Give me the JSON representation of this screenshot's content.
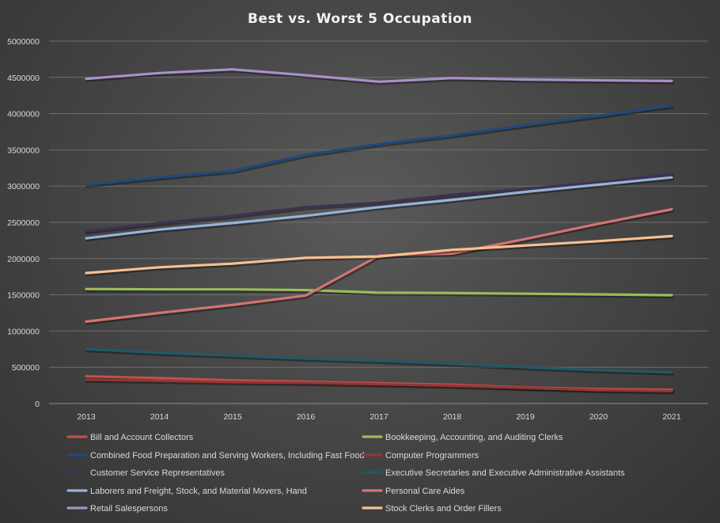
{
  "chart_data": {
    "type": "line",
    "title": "Best vs. Worst  5 Occupation",
    "xlabel": "",
    "ylabel": "",
    "ylim": [
      0,
      5000000
    ],
    "yticks": [
      0,
      500000,
      1000000,
      1500000,
      2000000,
      2500000,
      3000000,
      3500000,
      4000000,
      4500000,
      5000000
    ],
    "ytick_labels": [
      "0",
      "500000",
      "1000000",
      "1500000",
      "2000000",
      "2500000",
      "3000000",
      "3500000",
      "4000000",
      "4500000",
      "5000000"
    ],
    "x": [
      "2013",
      "2014",
      "2015",
      "2016",
      "2017",
      "2018",
      "2019",
      "2020",
      "2021"
    ],
    "grid": "horizontal",
    "legend_position": "bottom",
    "series": [
      {
        "name": "Bill and Account Collectors",
        "color": "#c0504d",
        "values": [
          375000,
          350000,
          320000,
          300000,
          280000,
          260000,
          220000,
          200000,
          190000
        ]
      },
      {
        "name": "Bookkeeping, Accounting, and Auditing Clerks",
        "color": "#9bbb59",
        "values": [
          1580000,
          1575000,
          1575000,
          1565000,
          1530000,
          1525000,
          1515000,
          1505000,
          1495000
        ]
      },
      {
        "name": "Combined Food Preparation and Serving Workers, Including Fast Food",
        "color": "#1f497d",
        "values": [
          3020000,
          3120000,
          3210000,
          3430000,
          3580000,
          3700000,
          3840000,
          3970000,
          4110000
        ]
      },
      {
        "name": "Computer Programmers",
        "color": "#943634",
        "values": [
          330000,
          315000,
          295000,
          285000,
          265000,
          245000,
          215000,
          185000,
          170000
        ]
      },
      {
        "name": "Customer Service Representatives",
        "color": "#3f3151",
        "values": [
          2380000,
          2490000,
          2590000,
          2710000,
          2770000,
          2880000,
          2960000,
          3050000,
          3160000
        ]
      },
      {
        "name": "Executive Secretaries and Executive Administrative Assistants",
        "color": "#215968",
        "values": [
          750000,
          700000,
          660000,
          620000,
          590000,
          550000,
          500000,
          460000,
          430000
        ]
      },
      {
        "name": "Laborers and Freight, Stock, and Material Movers, Hand",
        "color": "#95b3d7",
        "values": [
          2280000,
          2400000,
          2490000,
          2590000,
          2710000,
          2810000,
          2920000,
          3020000,
          3120000
        ]
      },
      {
        "name": "Personal Care Aides",
        "color": "#d47471",
        "values": [
          1130000,
          1250000,
          1360000,
          1490000,
          2040000,
          2070000,
          2270000,
          2480000,
          2680000
        ]
      },
      {
        "name": "Retail Salespersons",
        "color": "#a991c9",
        "values": [
          4480000,
          4560000,
          4610000,
          4530000,
          4440000,
          4490000,
          4470000,
          4460000,
          4450000
        ]
      },
      {
        "name": "Stock Clerks and Order Fillers",
        "color": "#fac090",
        "values": [
          1800000,
          1880000,
          1930000,
          2010000,
          2030000,
          2120000,
          2180000,
          2240000,
          2310000
        ]
      }
    ]
  }
}
